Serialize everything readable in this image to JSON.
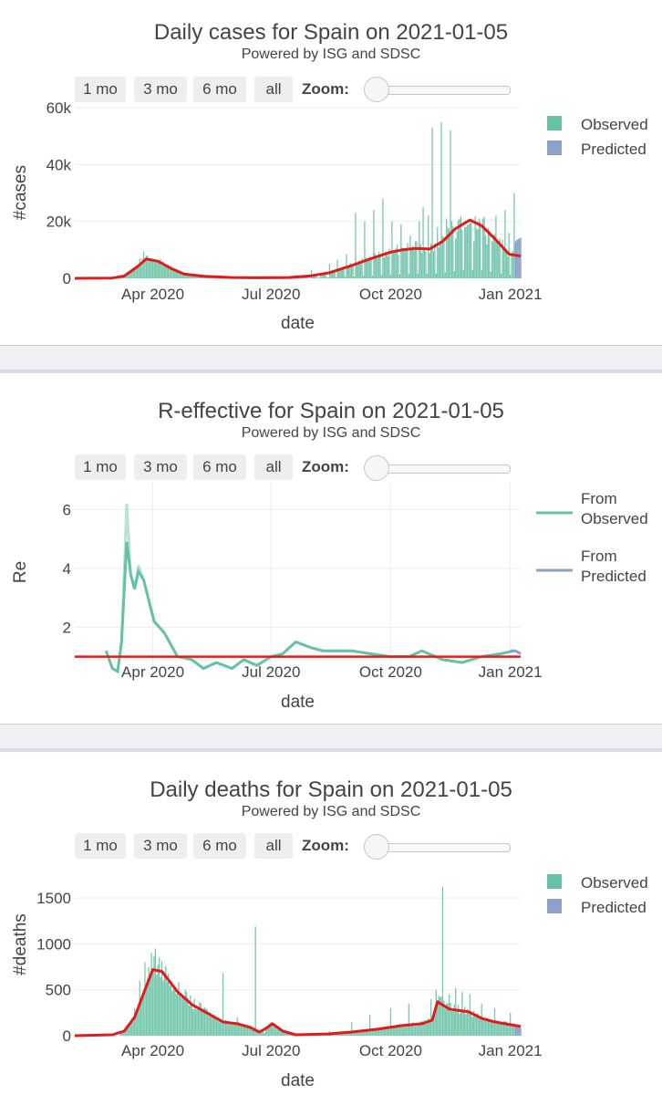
{
  "colors": {
    "observed": "#66c2a5",
    "predicted": "#8da0cb",
    "fit": "#e31a1c",
    "grid": "#eeeeee",
    "text": "#444444"
  },
  "charts": [
    {
      "title": "Daily cases for Spain on 2021-01-05",
      "subtitle": "Powered by ISG and SDSC",
      "buttons": [
        "1 mo",
        "3 mo",
        "6 mo",
        "all"
      ],
      "zoom_label": "Zoom:",
      "ylabel": "#cases",
      "xlabel": "date",
      "yticks": [
        "0",
        "20k",
        "40k",
        "60k"
      ],
      "xticks": [
        "Apr 2020",
        "Jul 2020",
        "Oct 2020",
        "Jan 2021"
      ],
      "legend": [
        "Observed",
        "Predicted"
      ]
    },
    {
      "title": "R-effective for Spain on 2021-01-05",
      "subtitle": "Powered by ISG and SDSC",
      "buttons": [
        "1 mo",
        "3 mo",
        "6 mo",
        "all"
      ],
      "zoom_label": "Zoom:",
      "ylabel": "Re",
      "xlabel": "date",
      "yticks": [
        "2",
        "4",
        "6"
      ],
      "xticks": [
        "Apr 2020",
        "Jul 2020",
        "Oct 2020",
        "Jan 2021"
      ],
      "legend": [
        "From Observed",
        "From Predicted"
      ]
    },
    {
      "title": "Daily deaths for Spain on 2021-01-05",
      "subtitle": "Powered by ISG and SDSC",
      "buttons": [
        "1 mo",
        "3 mo",
        "6 mo",
        "all"
      ],
      "zoom_label": "Zoom:",
      "ylabel": "#deaths",
      "xlabel": "date",
      "yticks": [
        "0",
        "500",
        "1000",
        "1500"
      ],
      "xticks": [
        "Apr 2020",
        "Jul 2020",
        "Oct 2020",
        "Jan 2021"
      ],
      "legend": [
        "Observed",
        "Predicted"
      ]
    }
  ],
  "chart_data": [
    {
      "type": "bar",
      "title": "Daily cases for Spain on 2021-01-05",
      "subtitle": "Powered by ISG and SDSC",
      "xlabel": "date",
      "ylabel": "#cases",
      "ylim": [
        0,
        60000
      ],
      "xrange": [
        "2020-02-01",
        "2021-01-09"
      ],
      "series": [
        {
          "name": "Observed",
          "kind": "bar",
          "dates": [
            "2020-03-01",
            "2020-03-15",
            "2020-03-22",
            "2020-03-25",
            "2020-03-28",
            "2020-04-04",
            "2020-04-15",
            "2020-05-01",
            "2020-06-01",
            "2020-07-01",
            "2020-07-20",
            "2020-08-01",
            "2020-08-15",
            "2020-08-21",
            "2020-08-28",
            "2020-09-04",
            "2020-09-11",
            "2020-09-18",
            "2020-09-25",
            "2020-10-02",
            "2020-10-09",
            "2020-10-16",
            "2020-10-23",
            "2020-10-26",
            "2020-10-30",
            "2020-11-02",
            "2020-11-06",
            "2020-11-09",
            "2020-11-13",
            "2020-11-16",
            "2020-11-20",
            "2020-11-23",
            "2020-11-27",
            "2020-11-30",
            "2020-12-04",
            "2020-12-09",
            "2020-12-11",
            "2020-12-14",
            "2020-12-18",
            "2020-12-21",
            "2020-12-24",
            "2020-12-28",
            "2020-12-31",
            "2021-01-04"
          ],
          "values": [
            100,
            3000,
            7000,
            9500,
            8000,
            6500,
            4500,
            1500,
            500,
            600,
            1200,
            3000,
            5000,
            6500,
            8500,
            23000,
            20000,
            24000,
            28000,
            20000,
            19000,
            15000,
            20000,
            25000,
            22000,
            53000,
            18000,
            55000,
            21000,
            52000,
            14000,
            21000,
            18000,
            19000,
            13000,
            20000,
            21000,
            12000,
            13000,
            22000,
            14000,
            24000,
            16000,
            30000
          ]
        },
        {
          "name": "Predicted",
          "kind": "bar",
          "dates": [
            "2021-01-05",
            "2021-01-06",
            "2021-01-07",
            "2021-01-08",
            "2021-01-09"
          ],
          "values": [
            13000,
            13500,
            13800,
            14000,
            14300
          ]
        },
        {
          "name": "Fit",
          "kind": "line",
          "dates": [
            "2020-02-01",
            "2020-03-01",
            "2020-03-10",
            "2020-03-20",
            "2020-03-27",
            "2020-04-05",
            "2020-04-15",
            "2020-04-25",
            "2020-05-10",
            "2020-06-01",
            "2020-06-20",
            "2020-07-15",
            "2020-08-01",
            "2020-08-15",
            "2020-09-01",
            "2020-09-15",
            "2020-10-01",
            "2020-10-10",
            "2020-10-20",
            "2020-10-31",
            "2020-11-10",
            "2020-11-20",
            "2020-12-01",
            "2020-12-10",
            "2020-12-20",
            "2020-12-31",
            "2021-01-09"
          ],
          "values": [
            0,
            100,
            800,
            4000,
            6800,
            6000,
            3500,
            1500,
            700,
            300,
            200,
            300,
            900,
            2000,
            4500,
            6800,
            9200,
            10000,
            10500,
            10300,
            13000,
            17500,
            20500,
            18500,
            14000,
            8500,
            7800
          ]
        }
      ]
    },
    {
      "type": "line",
      "title": "R-effective for Spain on 2021-01-05",
      "subtitle": "Powered by ISG and SDSC",
      "xlabel": "date",
      "ylabel": "Re",
      "ylim": [
        0.4,
        6.6
      ],
      "xrange": [
        "2020-02-01",
        "2021-01-09"
      ],
      "series": [
        {
          "name": "From Observed",
          "kind": "line",
          "dates": [
            "2020-02-25",
            "2020-03-01",
            "2020-03-05",
            "2020-03-08",
            "2020-03-12",
            "2020-03-15",
            "2020-03-18",
            "2020-03-21",
            "2020-03-25",
            "2020-04-02",
            "2020-04-10",
            "2020-04-20",
            "2020-05-01",
            "2020-05-10",
            "2020-05-20",
            "2020-06-01",
            "2020-06-10",
            "2020-06-20",
            "2020-07-01",
            "2020-07-10",
            "2020-07-20",
            "2020-08-01",
            "2020-08-10",
            "2020-08-20",
            "2020-09-01",
            "2020-09-15",
            "2020-10-01",
            "2020-10-15",
            "2020-10-25",
            "2020-11-10",
            "2020-11-25",
            "2020-12-10",
            "2020-12-25",
            "2021-01-04"
          ],
          "values": [
            1.2,
            0.6,
            0.5,
            1.5,
            4.9,
            3.8,
            3.3,
            3.9,
            3.6,
            2.2,
            1.8,
            1.0,
            0.9,
            0.6,
            0.8,
            0.6,
            0.9,
            0.7,
            1.0,
            1.1,
            1.5,
            1.3,
            1.2,
            1.2,
            1.2,
            1.1,
            1.0,
            1.0,
            1.2,
            0.9,
            0.8,
            1.0,
            1.1,
            1.2
          ]
        },
        {
          "name": "From Predicted",
          "kind": "line",
          "dates": [
            "2021-01-01",
            "2021-01-05",
            "2021-01-09"
          ],
          "values": [
            1.2,
            1.2,
            1.1
          ]
        },
        {
          "name": "Re=1",
          "kind": "line",
          "dates": [
            "2020-02-01",
            "2021-01-09"
          ],
          "values": [
            1.0,
            1.0
          ]
        }
      ]
    },
    {
      "type": "bar",
      "title": "Daily deaths for Spain on 2021-01-05",
      "subtitle": "Powered by ISG and SDSC",
      "xlabel": "date",
      "ylabel": "#deaths",
      "ylim": [
        0,
        1750
      ],
      "xrange": [
        "2020-02-01",
        "2021-01-09"
      ],
      "series": [
        {
          "name": "Observed",
          "kind": "bar",
          "dates": [
            "2020-03-10",
            "2020-03-18",
            "2020-03-22",
            "2020-03-26",
            "2020-03-31",
            "2020-04-03",
            "2020-04-06",
            "2020-04-10",
            "2020-04-15",
            "2020-04-20",
            "2020-04-25",
            "2020-05-01",
            "2020-05-10",
            "2020-05-20",
            "2020-05-25",
            "2020-06-05",
            "2020-06-19",
            "2020-06-26",
            "2020-07-20",
            "2020-08-15",
            "2020-09-01",
            "2020-09-15",
            "2020-10-01",
            "2020-10-15",
            "2020-11-01",
            "2020-11-05",
            "2020-11-10",
            "2020-11-15",
            "2020-11-20",
            "2020-11-25",
            "2020-12-01",
            "2020-12-10",
            "2020-12-20",
            "2021-01-01"
          ],
          "values": [
            50,
            300,
            600,
            800,
            900,
            950,
            850,
            700,
            600,
            500,
            400,
            350,
            300,
            200,
            680,
            200,
            1190,
            30,
            10,
            50,
            150,
            230,
            300,
            350,
            400,
            500,
            1620,
            450,
            520,
            480,
            450,
            350,
            300,
            250
          ]
        },
        {
          "name": "Predicted",
          "kind": "bar",
          "dates": [
            "2021-01-05",
            "2021-01-06",
            "2021-01-07",
            "2021-01-08",
            "2021-01-09"
          ],
          "values": [
            95,
            95,
            90,
            90,
            88
          ]
        },
        {
          "name": "Fit",
          "kind": "line",
          "dates": [
            "2020-02-01",
            "2020-03-01",
            "2020-03-10",
            "2020-03-18",
            "2020-03-26",
            "2020-04-01",
            "2020-04-08",
            "2020-04-20",
            "2020-05-01",
            "2020-05-15",
            "2020-05-25",
            "2020-06-05",
            "2020-06-15",
            "2020-06-22",
            "2020-06-27",
            "2020-07-02",
            "2020-07-10",
            "2020-07-20",
            "2020-08-15",
            "2020-09-01",
            "2020-09-20",
            "2020-10-10",
            "2020-10-25",
            "2020-11-02",
            "2020-11-06",
            "2020-11-15",
            "2020-11-30",
            "2020-12-10",
            "2020-12-20",
            "2021-01-01",
            "2021-01-09"
          ],
          "values": [
            0,
            10,
            50,
            200,
            500,
            720,
            700,
            480,
            340,
            230,
            150,
            130,
            90,
            40,
            80,
            130,
            50,
            10,
            20,
            40,
            70,
            110,
            130,
            170,
            370,
            290,
            260,
            190,
            150,
            120,
            100
          ]
        }
      ]
    }
  ]
}
